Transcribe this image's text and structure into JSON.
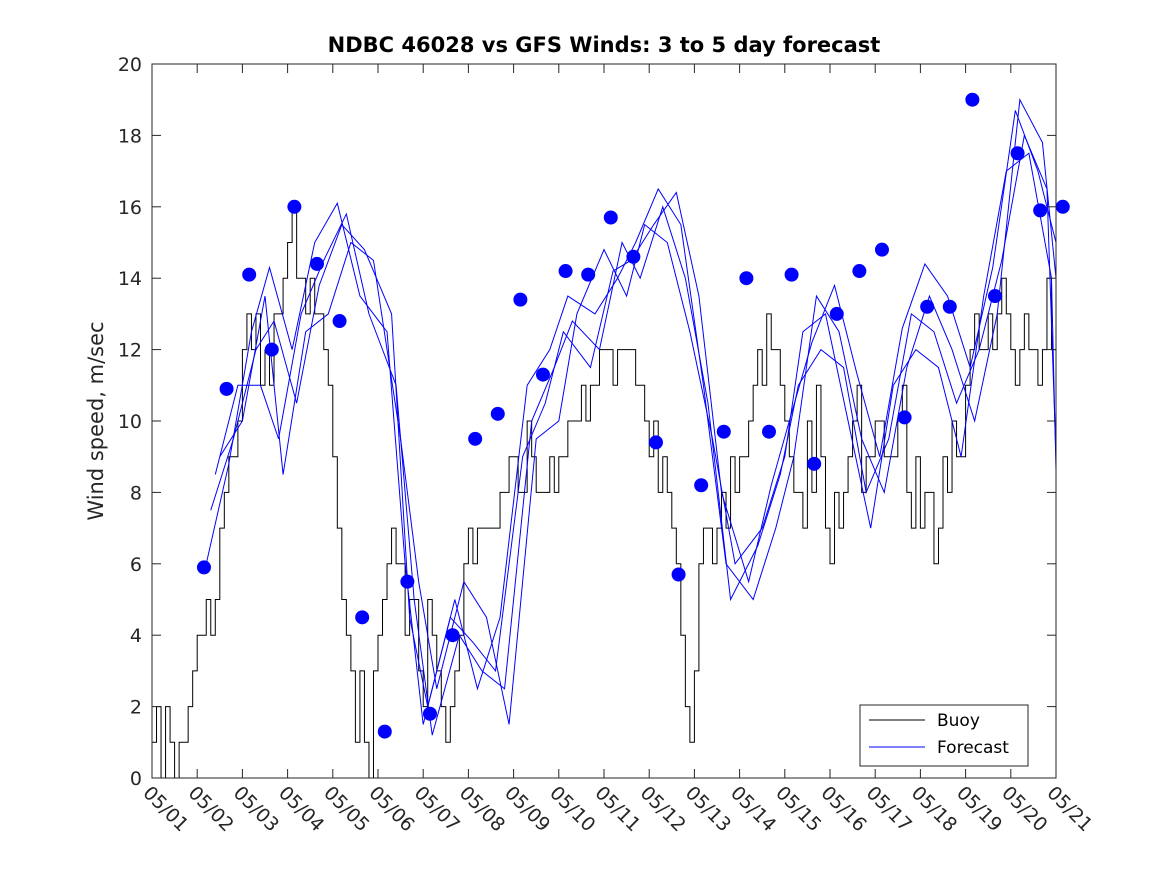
{
  "chart_data": {
    "type": "line",
    "title": "NDBC 46028 vs GFS Winds: 3 to 5 day forecast",
    "xlabel": "",
    "ylabel": "Wind speed, m/sec",
    "xlim": [
      0,
      20
    ],
    "ylim": [
      0,
      20
    ],
    "xticks": [
      0,
      1,
      2,
      3,
      4,
      5,
      6,
      7,
      8,
      9,
      10,
      11,
      12,
      13,
      14,
      15,
      16,
      17,
      18,
      19,
      20
    ],
    "xtick_labels": [
      "05/01",
      "05/02",
      "05/03",
      "05/04",
      "05/05",
      "05/06",
      "05/07",
      "05/08",
      "05/09",
      "05/10",
      "05/11",
      "05/12",
      "05/13",
      "05/14",
      "05/15",
      "05/16",
      "05/17",
      "05/18",
      "05/19",
      "05/20",
      "05/21"
    ],
    "yticks": [
      0,
      2,
      4,
      6,
      8,
      10,
      12,
      14,
      16,
      18,
      20
    ],
    "ytick_labels": [
      "0",
      "2",
      "4",
      "6",
      "8",
      "10",
      "12",
      "14",
      "16",
      "18",
      "20"
    ],
    "grid": false,
    "legend": {
      "position": "bottom-right",
      "entries": [
        "Buoy",
        "Forecast"
      ]
    },
    "colors": {
      "buoy": "#000000",
      "forecast": "#0000ff",
      "marker": "#0000ff"
    },
    "series": [
      {
        "name": "Buoy",
        "x": [
          0,
          0.1,
          0.2,
          0.3,
          0.4,
          0.5,
          0.6,
          0.7,
          0.8,
          0.9,
          1.0,
          1.1,
          1.2,
          1.3,
          1.4,
          1.5,
          1.6,
          1.7,
          1.8,
          1.9,
          2.0,
          2.1,
          2.2,
          2.3,
          2.4,
          2.5,
          2.6,
          2.7,
          2.8,
          2.9,
          3.0,
          3.1,
          3.2,
          3.3,
          3.4,
          3.5,
          3.6,
          3.7,
          3.8,
          3.9,
          4.0,
          4.1,
          4.2,
          4.3,
          4.4,
          4.5,
          4.6,
          4.7,
          4.8,
          4.9,
          5.0,
          5.1,
          5.2,
          5.3,
          5.4,
          5.5,
          5.6,
          5.7,
          5.8,
          5.9,
          6.0,
          6.1,
          6.2,
          6.3,
          6.4,
          6.5,
          6.6,
          6.7,
          6.8,
          6.9,
          7.0,
          7.1,
          7.2,
          7.3,
          7.4,
          7.5,
          7.6,
          7.7,
          7.8,
          7.9,
          8.0,
          8.1,
          8.2,
          8.3,
          8.4,
          8.5,
          8.6,
          8.7,
          8.8,
          8.9,
          9.0,
          9.1,
          9.2,
          9.3,
          9.4,
          9.5,
          9.6,
          9.7,
          9.8,
          9.9,
          10.0,
          10.1,
          10.2,
          10.3,
          10.4,
          10.5,
          10.6,
          10.7,
          10.8,
          10.9,
          11.0,
          11.1,
          11.2,
          11.3,
          11.4,
          11.5,
          11.6,
          11.7,
          11.8,
          11.9,
          12.0,
          12.1,
          12.2,
          12.3,
          12.4,
          12.5,
          12.6,
          12.7,
          12.8,
          12.9,
          13.0,
          13.1,
          13.2,
          13.3,
          13.4,
          13.5,
          13.6,
          13.7,
          13.8,
          13.9,
          14.0,
          14.1,
          14.2,
          14.3,
          14.4,
          14.5,
          14.6,
          14.7,
          14.8,
          14.9,
          15.0,
          15.1,
          15.2,
          15.3,
          15.4,
          15.5,
          15.6,
          15.7,
          15.8,
          15.9,
          16.0,
          16.1,
          16.2,
          16.3,
          16.4,
          16.5,
          16.6,
          16.7,
          16.8,
          16.9,
          17.0,
          17.1,
          17.2,
          17.3,
          17.4,
          17.5,
          17.6,
          17.7,
          17.8,
          17.9,
          18.0,
          18.1,
          18.2,
          18.3,
          18.4,
          18.5,
          18.6,
          18.7,
          18.8,
          18.9,
          19.0,
          19.1,
          19.2,
          19.3,
          19.4,
          19.5,
          19.6,
          19.7,
          19.8,
          19.9,
          20.0
        ],
        "values": [
          1,
          2,
          0,
          2,
          1,
          0,
          1,
          1,
          2,
          3,
          4,
          4,
          5,
          4,
          5,
          7,
          8,
          9,
          9,
          10,
          12,
          13,
          12,
          13,
          11,
          12,
          11,
          13,
          13,
          14,
          15,
          16,
          14,
          14,
          13,
          14,
          13,
          13,
          12,
          11,
          9,
          7,
          5,
          4,
          3,
          1,
          3,
          1,
          0,
          3,
          4,
          5,
          6,
          7,
          6,
          6,
          4,
          5,
          5,
          3,
          2,
          5,
          4,
          3,
          2,
          1,
          2,
          3,
          4,
          6,
          7,
          6,
          7,
          7,
          7,
          7,
          7,
          8,
          8,
          9,
          9,
          8,
          8,
          10,
          9,
          8,
          8,
          8,
          9,
          8,
          9,
          9,
          10,
          10,
          10,
          11,
          10,
          11,
          11,
          12,
          12,
          12,
          11,
          12,
          12,
          12,
          12,
          11,
          11,
          10,
          9,
          10,
          8,
          9,
          8,
          7,
          6,
          4,
          2,
          1,
          3,
          6,
          7,
          7,
          6,
          7,
          8,
          7,
          9,
          8,
          9,
          9,
          10,
          11,
          12,
          11,
          13,
          12,
          12,
          11,
          10,
          9,
          8,
          8,
          7,
          10,
          8,
          11,
          9,
          7,
          6,
          8,
          7,
          8,
          9,
          10,
          11,
          8,
          9,
          9,
          10,
          10,
          9,
          9,
          9,
          10,
          11,
          8,
          7,
          9,
          7,
          8,
          8,
          6,
          7,
          9,
          8,
          10,
          9,
          9,
          11,
          12,
          13,
          12,
          12,
          13,
          12,
          13,
          14,
          13,
          12,
          11,
          12,
          13,
          12,
          12,
          11,
          12,
          14,
          12,
          11
        ]
      },
      {
        "name": "Forecast",
        "x": [
          1.2,
          1.7,
          2.2,
          2.6,
          3.1,
          3.6,
          4.1,
          4.6,
          5.2,
          5.6,
          6.0,
          6.6,
          7.1,
          7.6,
          8.2,
          8.7,
          9.1,
          9.7,
          10.2,
          10.6,
          11.1,
          11.6,
          12.1,
          12.6,
          13.2,
          13.7,
          14.1,
          14.6,
          15.1,
          15.6,
          16.1,
          16.6,
          17.1,
          17.6,
          18.1,
          18.6,
          19.1,
          19.6,
          20.0
        ],
        "values": [
          6.0,
          8.8,
          12.5,
          14.3,
          12.0,
          15.0,
          16.1,
          13.5,
          12.5,
          6.0,
          1.5,
          4.5,
          3.8,
          3.0,
          9.0,
          10.5,
          12.5,
          11.5,
          14.2,
          14.5,
          15.5,
          16.4,
          13.5,
          8.0,
          5.5,
          8.2,
          10.0,
          12.2,
          13.8,
          11.3,
          9.0,
          12.6,
          14.4,
          13.5,
          11.5,
          14.3,
          18.7,
          17.0,
          15.0
        ]
      },
      {
        "name": "Forecast",
        "x": [
          1.3,
          1.8,
          2.3,
          2.7,
          3.2,
          3.7,
          4.2,
          4.7,
          5.3,
          5.7,
          6.1,
          6.7,
          7.2,
          7.7,
          8.3,
          8.8,
          9.2,
          9.8,
          10.3,
          10.7,
          11.2,
          11.7,
          12.2,
          12.7,
          13.3,
          13.8,
          14.2,
          14.7,
          15.2,
          15.7,
          16.2,
          16.7,
          17.2,
          17.7,
          18.2,
          18.7,
          19.2,
          19.7,
          20.0
        ],
        "values": [
          7.5,
          9.5,
          12.0,
          12.8,
          10.5,
          13.8,
          15.5,
          14.8,
          13.0,
          4.5,
          2.0,
          5.0,
          2.5,
          4.5,
          11.0,
          12.0,
          13.5,
          13.0,
          14.0,
          15.0,
          16.5,
          15.5,
          11.0,
          6.0,
          5.0,
          7.0,
          9.0,
          13.5,
          12.5,
          9.5,
          8.0,
          11.5,
          13.5,
          12.0,
          10.0,
          13.0,
          19.0,
          17.8,
          14.0
        ]
      },
      {
        "name": "Forecast",
        "x": [
          1.4,
          1.9,
          2.4,
          2.8,
          3.3,
          3.8,
          4.3,
          4.8,
          5.4,
          5.8,
          6.2,
          6.8,
          7.3,
          7.8,
          8.4,
          8.9,
          9.3,
          9.9,
          10.4,
          10.8,
          11.3,
          11.8,
          12.3,
          12.8,
          13.4,
          13.9,
          14.3,
          14.8,
          15.3,
          15.8,
          16.3,
          16.8,
          17.3,
          17.8,
          18.3,
          18.8,
          19.3,
          19.8,
          20.0
        ],
        "values": [
          8.5,
          11.0,
          11.0,
          9.5,
          13.0,
          14.5,
          15.8,
          13.0,
          11.0,
          5.0,
          1.2,
          4.0,
          3.0,
          2.5,
          10.0,
          11.5,
          12.8,
          12.0,
          15.0,
          14.0,
          16.0,
          14.0,
          10.5,
          5.0,
          6.5,
          8.5,
          11.0,
          12.0,
          11.5,
          8.0,
          9.5,
          13.0,
          12.5,
          10.5,
          12.0,
          14.5,
          18.0,
          16.5,
          9.0
        ]
      },
      {
        "name": "Forecast",
        "x": [
          1.5,
          2.0,
          2.5,
          2.9,
          3.4,
          3.9,
          4.4,
          4.9,
          5.5,
          5.9,
          6.3,
          6.9,
          7.4,
          7.9,
          8.5,
          9.0,
          9.4,
          10.0,
          10.5,
          10.9,
          11.4,
          11.9,
          12.4,
          12.9,
          13.5,
          14.0,
          14.4,
          14.9,
          15.4,
          15.9,
          16.4,
          16.9,
          17.4,
          17.9,
          18.4,
          18.9,
          19.4,
          19.9,
          20.0
        ],
        "values": [
          9.0,
          10.0,
          13.5,
          8.5,
          12.5,
          13.0,
          15.0,
          14.5,
          9.5,
          5.5,
          2.5,
          5.5,
          4.5,
          1.5,
          9.5,
          10.0,
          13.0,
          14.8,
          13.5,
          15.5,
          15.0,
          12.5,
          9.5,
          6.0,
          7.0,
          9.0,
          12.5,
          13.0,
          10.0,
          7.0,
          11.0,
          12.0,
          11.5,
          9.0,
          13.5,
          17.0,
          17.5,
          14.0,
          8.6
        ]
      }
    ],
    "markers": {
      "name": "Forecast",
      "x": [
        1.15,
        1.65,
        2.15,
        2.65,
        3.15,
        3.65,
        4.15,
        4.65,
        5.15,
        5.65,
        6.15,
        6.65,
        7.15,
        7.65,
        8.15,
        8.65,
        9.15,
        9.65,
        10.15,
        10.65,
        11.15,
        11.65,
        12.15,
        12.65,
        13.15,
        13.65,
        14.15,
        14.65,
        15.15,
        15.65,
        16.15,
        16.65,
        17.15,
        17.65,
        18.15,
        18.65,
        19.15,
        19.65,
        20.15
      ],
      "values": [
        5.9,
        10.9,
        14.1,
        12.0,
        16.0,
        14.4,
        12.8,
        4.5,
        1.3,
        5.5,
        1.8,
        4.0,
        9.5,
        10.2,
        13.4,
        11.3,
        14.2,
        14.1,
        15.7,
        14.6,
        9.4,
        5.7,
        8.2,
        9.7,
        14.0,
        9.7,
        14.1,
        8.8,
        13.0,
        14.2,
        14.8,
        10.1,
        13.2,
        13.2,
        19.0,
        13.5,
        17.5,
        15.9,
        16.0
      ]
    }
  }
}
